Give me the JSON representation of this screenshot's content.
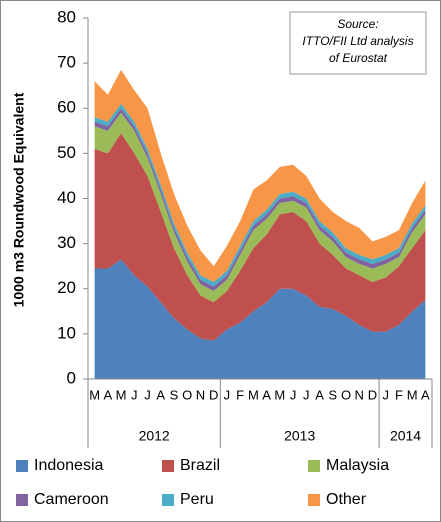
{
  "chart_data": {
    "type": "stacked_area",
    "y_axis_label": "1000 m3 Roundwood  Equivalent",
    "annotation": [
      "Source:",
      "ITTO/FII Ltd analysis",
      "of Eurostat"
    ],
    "categories": [
      "M",
      "A",
      "M",
      "J",
      "J",
      "A",
      "S",
      "O",
      "N",
      "D",
      "J",
      "F",
      "M",
      "A",
      "M",
      "J",
      "J",
      "A",
      "S",
      "O",
      "N",
      "D",
      "J",
      "F",
      "M",
      "A"
    ],
    "x_groups": [
      {
        "label": "2012",
        "span": 10
      },
      {
        "label": "2013",
        "span": 12
      },
      {
        "label": "2014",
        "span": 4
      }
    ],
    "ylim": [
      0,
      80
    ],
    "yticks": [
      0,
      10,
      20,
      30,
      40,
      50,
      60,
      70,
      80
    ],
    "legend": "bottom",
    "series": [
      {
        "name": "Indonesia",
        "color": "#4f81bd",
        "values": [
          24.5,
          24.5,
          26.5,
          23,
          20.5,
          17,
          13.5,
          11,
          9,
          8.5,
          11,
          12.5,
          15,
          17,
          20,
          20,
          18.5,
          16,
          15.5,
          14,
          12,
          10.5,
          10.5,
          12,
          15,
          17.5
        ]
      },
      {
        "name": "Brazil",
        "color": "#c0504d",
        "values": [
          26.5,
          25.5,
          28,
          27,
          24.5,
          20,
          15.5,
          12,
          9.5,
          8.5,
          8.5,
          11.5,
          14,
          15,
          16.5,
          17,
          16.5,
          14,
          12,
          10.5,
          11,
          11,
          12,
          13,
          14,
          15.5
        ]
      },
      {
        "name": "Malaysia",
        "color": "#9bbb59",
        "values": [
          5,
          5,
          4.5,
          5,
          4,
          4,
          3.5,
          3,
          2.5,
          2.5,
          2.5,
          3.5,
          4,
          3.5,
          2.5,
          2.5,
          3,
          3,
          3,
          2.5,
          2.5,
          3,
          3,
          2,
          3.5,
          3.5
        ]
      },
      {
        "name": "Cameroon",
        "color": "#8064a2",
        "values": [
          1,
          1,
          1,
          1,
          1,
          1,
          1,
          1,
          1,
          1,
          1,
          1,
          1,
          1,
          1,
          1,
          1,
          1,
          1,
          1,
          1,
          1,
          1,
          1,
          1,
          1
        ]
      },
      {
        "name": "Peru",
        "color": "#4bacc6",
        "values": [
          1,
          1,
          1,
          1,
          1,
          1,
          1,
          1,
          1,
          1,
          1,
          1,
          1,
          1,
          1,
          1,
          1,
          1,
          1,
          1,
          1,
          1,
          1,
          1,
          1,
          1
        ]
      },
      {
        "name": "Other",
        "color": "#f79646",
        "values": [
          8,
          6,
          7.5,
          7,
          9,
          7,
          6.5,
          6,
          5.5,
          3.5,
          5.5,
          5.5,
          7,
          6.5,
          6,
          6,
          5,
          5,
          4.5,
          6,
          6,
          4,
          4,
          4,
          4.5,
          5.5
        ]
      }
    ]
  }
}
